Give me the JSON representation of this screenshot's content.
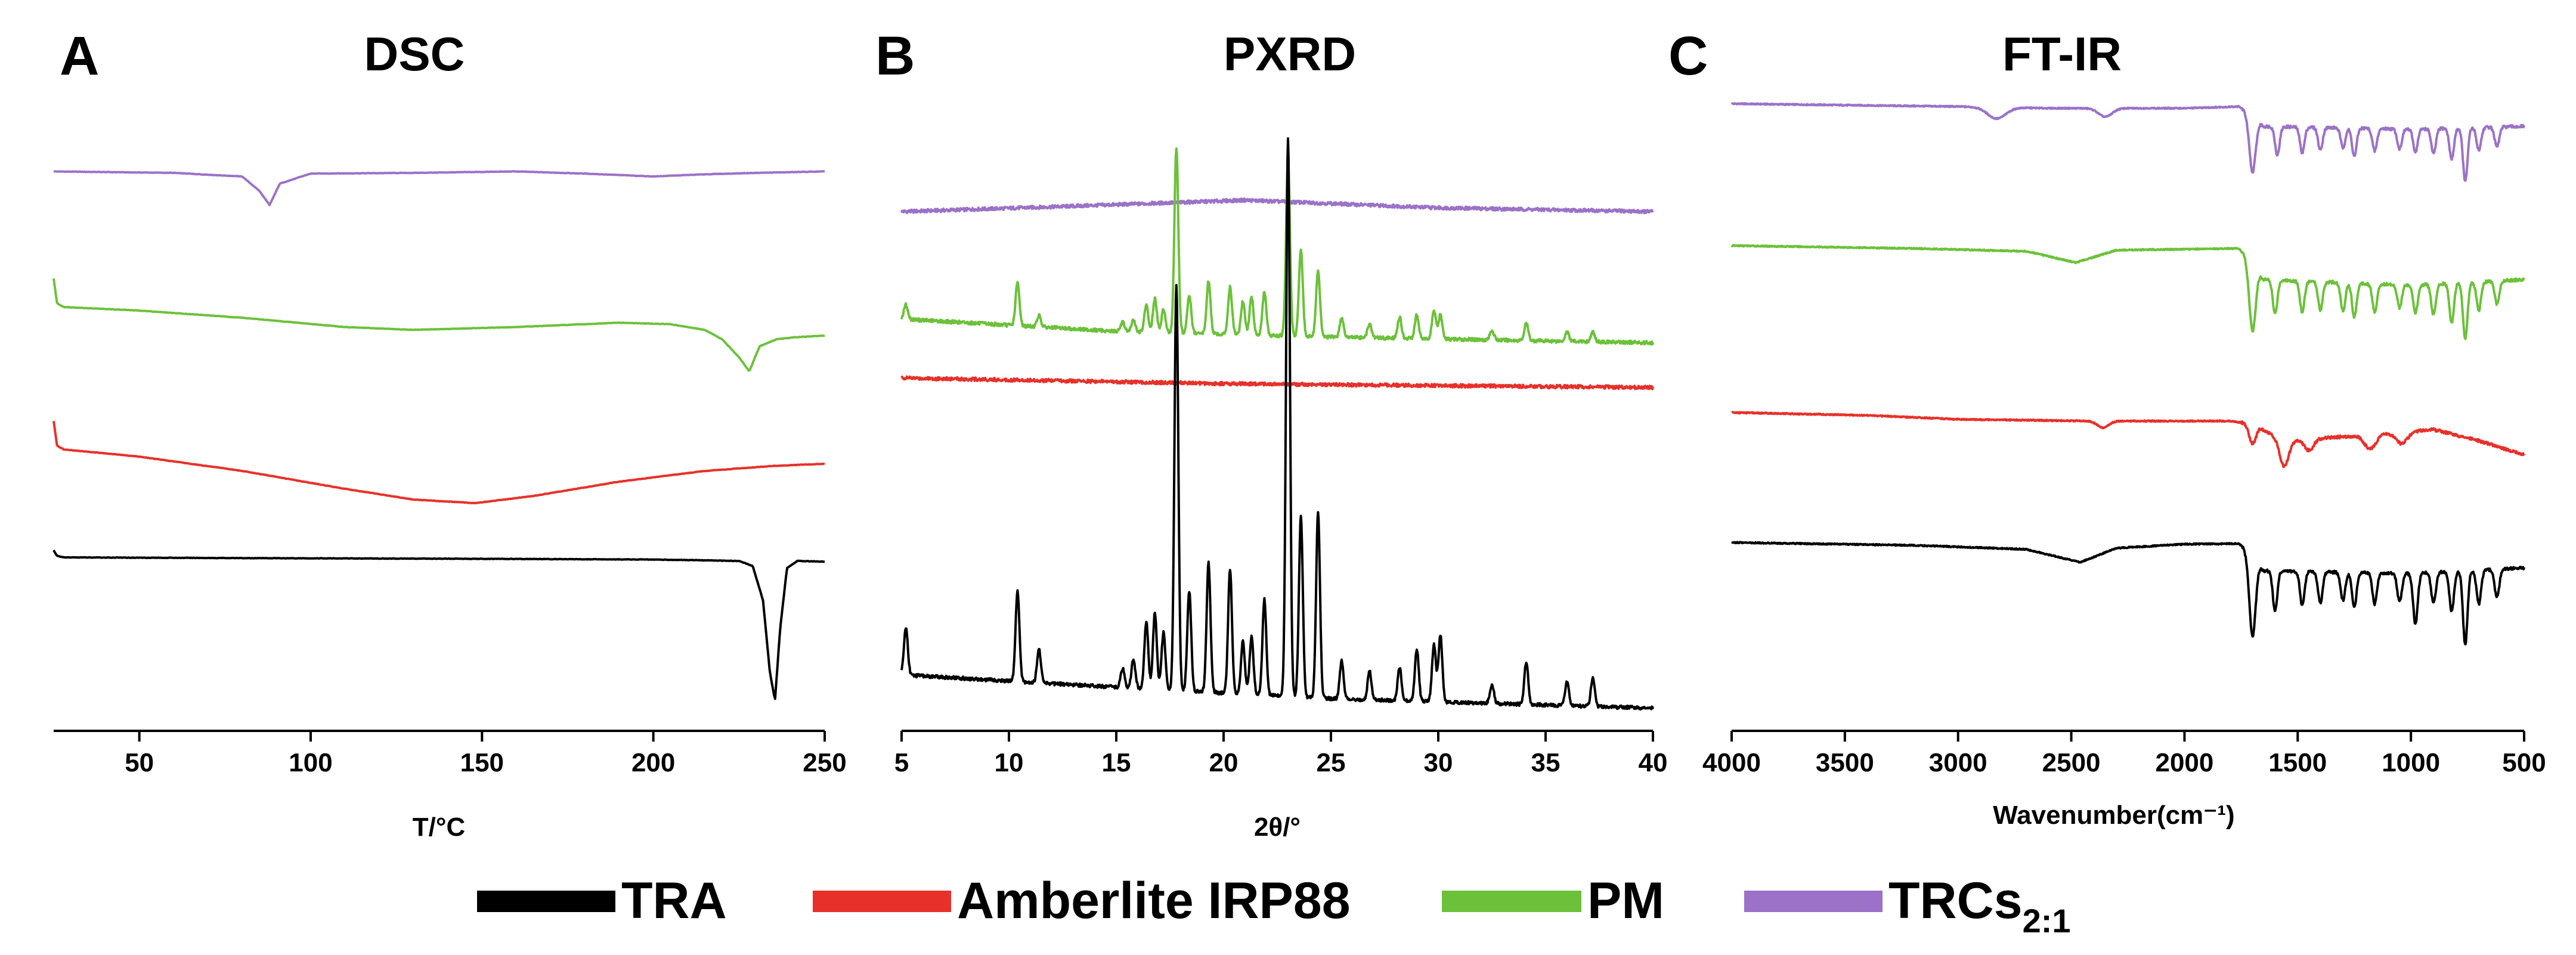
{
  "colors": {
    "TRA": "#000000",
    "Amberlite IRP88": "#e8302a",
    "PM": "#6cc13a",
    "TRCs": "#9b72c8"
  },
  "legend": [
    {
      "label": "TRA",
      "sub": "",
      "color": "#000000"
    },
    {
      "label": "Amberlite IRP88",
      "sub": "",
      "color": "#e8302a"
    },
    {
      "label": "PM",
      "sub": "",
      "color": "#6cc13a"
    },
    {
      "label": "TRCs",
      "sub": "2:1",
      "color": "#9b72c8"
    }
  ],
  "chart_data": [
    {
      "type": "line",
      "letter": "A",
      "title": "DSC",
      "xlabel": "T/°C",
      "ylabel": "",
      "xlim": [
        25,
        250
      ],
      "xticks": [
        50,
        100,
        150,
        200,
        250
      ],
      "x_reversed": false,
      "series": [
        {
          "name": "TRCs2:1",
          "color": "#9b72c8",
          "offset": 3.0,
          "x": [
            25,
            60,
            80,
            85,
            88,
            91,
            100,
            130,
            160,
            180,
            200,
            215,
            230,
            250
          ],
          "y": [
            0.02,
            0.0,
            -0.05,
            -0.25,
            -0.45,
            -0.15,
            -0.01,
            0.0,
            0.02,
            -0.01,
            -0.05,
            -0.02,
            0.0,
            0.02
          ]
        },
        {
          "name": "PM",
          "color": "#6cc13a",
          "offset": 2.0,
          "x": [
            25,
            26,
            28,
            50,
            80,
            110,
            130,
            160,
            190,
            205,
            215,
            220,
            225,
            228,
            231,
            236,
            242,
            250
          ],
          "y": [
            0.4,
            0.05,
            0.0,
            -0.05,
            -0.15,
            -0.28,
            -0.32,
            -0.28,
            -0.22,
            -0.24,
            -0.32,
            -0.45,
            -0.7,
            -0.9,
            -0.55,
            -0.45,
            -0.42,
            -0.4
          ]
        },
        {
          "name": "Amberlite IRP88",
          "color": "#e8302a",
          "offset": 1.0,
          "x": [
            25,
            26,
            28,
            50,
            80,
            110,
            130,
            148,
            165,
            190,
            215,
            235,
            250
          ],
          "y": [
            0.45,
            0.1,
            0.05,
            -0.05,
            -0.25,
            -0.5,
            -0.65,
            -0.7,
            -0.6,
            -0.4,
            -0.25,
            -0.18,
            -0.15
          ]
        },
        {
          "name": "TRA",
          "color": "#000000",
          "offset": 0.0,
          "x": [
            25,
            26,
            28,
            80,
            150,
            200,
            225,
            229,
            232,
            234,
            235.5,
            237,
            239,
            242,
            250
          ],
          "y": [
            0.1,
            0.02,
            0.0,
            -0.01,
            -0.02,
            -0.03,
            -0.05,
            -0.12,
            -0.6,
            -1.6,
            -2.0,
            -1.0,
            -0.15,
            -0.05,
            -0.06
          ]
        }
      ]
    },
    {
      "type": "line",
      "letter": "B",
      "title": "PXRD",
      "xlabel": "2θ/°",
      "ylabel": "",
      "xlim": [
        5,
        40
      ],
      "xticks": [
        5,
        10,
        15,
        20,
        25,
        30,
        35,
        40
      ],
      "x_reversed": false,
      "series": [
        {
          "name": "TRCs2:1",
          "color": "#9b72c8",
          "offset": 3.0,
          "base": [
            [
              5,
              0.0
            ],
            [
              12,
              0.05
            ],
            [
              21,
              0.12
            ],
            [
              30,
              0.04
            ],
            [
              40,
              0.0
            ]
          ],
          "peaks": []
        },
        {
          "name": "PM",
          "color": "#6cc13a",
          "offset": 2.0,
          "base": [
            [
              5,
              0.25
            ],
            [
              15,
              0.12
            ],
            [
              25,
              0.06
            ],
            [
              40,
              0.0
            ]
          ],
          "peaks": [
            [
              5.2,
              0.15
            ],
            [
              10.4,
              0.45
            ],
            [
              11.4,
              0.12
            ],
            [
              15.3,
              0.1
            ],
            [
              15.8,
              0.12
            ],
            [
              16.4,
              0.28
            ],
            [
              16.8,
              0.35
            ],
            [
              17.2,
              0.25
            ],
            [
              17.8,
              1.95
            ],
            [
              18.4,
              0.4
            ],
            [
              19.3,
              0.55
            ],
            [
              20.3,
              0.5
            ],
            [
              20.9,
              0.35
            ],
            [
              21.3,
              0.4
            ],
            [
              21.9,
              0.45
            ],
            [
              23.0,
              1.85
            ],
            [
              23.6,
              0.9
            ],
            [
              24.4,
              0.7
            ],
            [
              25.5,
              0.2
            ],
            [
              26.8,
              0.15
            ],
            [
              28.2,
              0.22
            ],
            [
              29.0,
              0.25
            ],
            [
              29.8,
              0.3
            ],
            [
              30.1,
              0.25
            ],
            [
              32.5,
              0.1
            ],
            [
              34.1,
              0.18
            ],
            [
              36.0,
              0.1
            ],
            [
              37.2,
              0.1
            ]
          ]
        },
        {
          "name": "Amberlite IRP88",
          "color": "#e8302a",
          "offset": 1.0,
          "base": [
            [
              5,
              0.1
            ],
            [
              20,
              0.04
            ],
            [
              40,
              0.0
            ]
          ],
          "peaks": []
        },
        {
          "name": "TRA",
          "color": "#000000",
          "offset": 0.0,
          "base": [
            [
              5,
              0.35
            ],
            [
              15,
              0.22
            ],
            [
              25,
              0.1
            ],
            [
              40,
              0.0
            ]
          ],
          "peaks": [
            [
              5.2,
              0.5
            ],
            [
              10.4,
              0.95
            ],
            [
              11.4,
              0.35
            ],
            [
              15.3,
              0.2
            ],
            [
              15.8,
              0.3
            ],
            [
              16.4,
              0.7
            ],
            [
              16.8,
              0.8
            ],
            [
              17.2,
              0.6
            ],
            [
              17.8,
              4.25
            ],
            [
              18.4,
              1.05
            ],
            [
              19.3,
              1.35
            ],
            [
              20.3,
              1.3
            ],
            [
              20.9,
              0.55
            ],
            [
              21.3,
              0.6
            ],
            [
              21.9,
              1.0
            ],
            [
              23.0,
              5.85
            ],
            [
              23.6,
              1.9
            ],
            [
              24.4,
              1.95
            ],
            [
              25.5,
              0.4
            ],
            [
              26.8,
              0.3
            ],
            [
              28.2,
              0.35
            ],
            [
              29.0,
              0.55
            ],
            [
              29.8,
              0.6
            ],
            [
              30.1,
              0.7
            ],
            [
              32.5,
              0.2
            ],
            [
              34.1,
              0.45
            ],
            [
              36.0,
              0.25
            ],
            [
              37.2,
              0.3
            ]
          ]
        }
      ]
    },
    {
      "type": "line",
      "letter": "C",
      "title": "FT-IR",
      "xlabel": "Wavenumber(cm⁻¹)",
      "ylabel": "",
      "xlim": [
        4000,
        500
      ],
      "xticks": [
        4000,
        3500,
        3000,
        2500,
        2000,
        1500,
        1000,
        500
      ],
      "x_reversed": true,
      "series": [
        {
          "name": "TRCs2:1",
          "color": "#9b72c8",
          "offset": 3.0,
          "base": [
            [
              4000,
              0.0
            ],
            [
              3000,
              -0.05
            ],
            [
              2600,
              -0.08
            ],
            [
              2000,
              -0.08
            ],
            [
              1760,
              -0.05
            ],
            [
              1700,
              -0.2
            ],
            [
              1650,
              -0.4
            ],
            [
              1000,
              -0.45
            ],
            [
              500,
              -0.4
            ]
          ],
          "bands": [
            [
              2830,
              0.2,
              40
            ],
            [
              2350,
              0.15,
              30
            ],
            [
              1700,
              1.0,
              14
            ],
            [
              1590,
              0.5,
              10
            ],
            [
              1480,
              0.45,
              10
            ],
            [
              1400,
              0.4,
              10
            ],
            [
              1300,
              0.35,
              10
            ],
            [
              1250,
              0.5,
              10
            ],
            [
              1160,
              0.4,
              10
            ],
            [
              1050,
              0.35,
              10
            ],
            [
              980,
              0.4,
              10
            ],
            [
              900,
              0.45,
              10
            ],
            [
              820,
              0.55,
              10
            ],
            [
              760,
              0.95,
              10
            ],
            [
              700,
              0.4,
              10
            ],
            [
              620,
              0.35,
              10
            ]
          ]
        },
        {
          "name": "PM",
          "color": "#6cc13a",
          "offset": 2.0,
          "base": [
            [
              4000,
              0.0
            ],
            [
              3200,
              -0.05
            ],
            [
              2700,
              -0.1
            ],
            [
              2480,
              -0.3
            ],
            [
              2300,
              -0.08
            ],
            [
              1760,
              -0.05
            ],
            [
              1700,
              -0.3
            ],
            [
              1650,
              -0.6
            ],
            [
              1000,
              -0.7
            ],
            [
              500,
              -0.6
            ]
          ],
          "bands": [
            [
              1700,
              1.2,
              14
            ],
            [
              1600,
              0.6,
              10
            ],
            [
              1480,
              0.55,
              10
            ],
            [
              1400,
              0.5,
              10
            ],
            [
              1300,
              0.5,
              10
            ],
            [
              1250,
              0.6,
              10
            ],
            [
              1160,
              0.5,
              10
            ],
            [
              1050,
              0.4,
              10
            ],
            [
              980,
              0.5,
              10
            ],
            [
              900,
              0.55,
              10
            ],
            [
              820,
              0.7,
              10
            ],
            [
              760,
              1.0,
              10
            ],
            [
              700,
              0.5,
              10
            ],
            [
              620,
              0.4,
              10
            ]
          ]
        },
        {
          "name": "Amberlite IRP88",
          "color": "#e8302a",
          "offset": 1.0,
          "base": [
            [
              4000,
              0.0
            ],
            [
              3400,
              -0.05
            ],
            [
              3000,
              -0.12
            ],
            [
              2400,
              -0.15
            ],
            [
              1800,
              -0.15
            ],
            [
              1700,
              -0.2
            ],
            [
              1560,
              -0.5
            ],
            [
              1200,
              -0.4
            ],
            [
              900,
              -0.3
            ],
            [
              700,
              -0.5
            ],
            [
              500,
              -0.75
            ]
          ],
          "bands": [
            [
              2360,
              0.12,
              25
            ],
            [
              1700,
              0.35,
              15
            ],
            [
              1560,
              0.45,
              20
            ],
            [
              1450,
              0.2,
              20
            ],
            [
              1180,
              0.25,
              25
            ],
            [
              1040,
              0.2,
              25
            ]
          ]
        },
        {
          "name": "TRA",
          "color": "#000000",
          "offset": 0.0,
          "base": [
            [
              4000,
              0.0
            ],
            [
              3200,
              -0.05
            ],
            [
              2700,
              -0.12
            ],
            [
              2460,
              -0.35
            ],
            [
              2300,
              -0.1
            ],
            [
              2000,
              -0.03
            ],
            [
              1760,
              -0.02
            ],
            [
              1700,
              -0.2
            ],
            [
              1650,
              -0.5
            ],
            [
              1000,
              -0.55
            ],
            [
              500,
              -0.45
            ]
          ],
          "bands": [
            [
              1700,
              1.45,
              14
            ],
            [
              1600,
              0.7,
              10
            ],
            [
              1480,
              0.6,
              10
            ],
            [
              1400,
              0.55,
              10
            ],
            [
              1300,
              0.5,
              10
            ],
            [
              1250,
              0.6,
              10
            ],
            [
              1160,
              0.55,
              10
            ],
            [
              1050,
              0.5,
              10
            ],
            [
              980,
              0.9,
              10
            ],
            [
              900,
              0.55,
              10
            ],
            [
              820,
              0.7,
              10
            ],
            [
              760,
              1.3,
              10
            ],
            [
              700,
              0.6,
              10
            ],
            [
              620,
              0.5,
              10
            ]
          ]
        }
      ]
    }
  ]
}
